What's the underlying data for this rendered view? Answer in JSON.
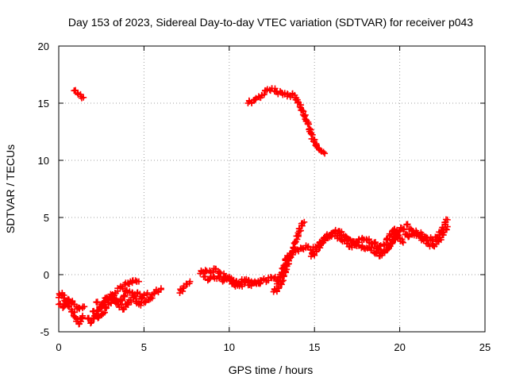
{
  "chart_data": {
    "type": "scatter",
    "title": "Day 153 of 2023, Sidereal Day-to-day VTEC variation (SDTVAR) for receiver p043",
    "xlabel": "GPS time / hours",
    "ylabel": "SDTVAR / TECUs",
    "xlim": [
      0,
      25
    ],
    "ylim": [
      -5,
      20
    ],
    "xticks": [
      "0",
      "5",
      "10",
      "15",
      "20",
      "25"
    ],
    "yticks": [
      "-5",
      "0",
      "5",
      "10",
      "15",
      "20"
    ],
    "grid": true,
    "marker": "plus",
    "color": "#ff0000",
    "series": [
      {
        "name": "SDTVAR",
        "segments": [
          [
            [
              0.0,
              -2.0
            ],
            [
              0.2,
              -1.6
            ],
            [
              0.4,
              -2.4
            ],
            [
              0.6,
              -2.8
            ],
            [
              0.8,
              -3.2
            ],
            [
              1.0,
              -3.8
            ],
            [
              1.2,
              -4.3
            ],
            [
              1.4,
              -3.6
            ]
          ],
          [
            [
              0.0,
              -2.6
            ],
            [
              0.3,
              -2.8
            ],
            [
              0.6,
              -2.2
            ],
            [
              0.9,
              -2.6
            ],
            [
              1.2,
              -3.0
            ],
            [
              1.5,
              -2.8
            ]
          ],
          [
            [
              0.9,
              16.1
            ],
            [
              1.1,
              15.9
            ],
            [
              1.3,
              15.6
            ],
            [
              1.45,
              15.5
            ]
          ],
          [
            [
              1.7,
              -3.8
            ],
            [
              1.9,
              -4.2
            ],
            [
              2.1,
              -3.6
            ],
            [
              2.4,
              -3.0
            ],
            [
              2.7,
              -2.4
            ],
            [
              3.0,
              -2.0
            ],
            [
              3.3,
              -1.6
            ],
            [
              3.6,
              -1.2
            ],
            [
              3.9,
              -0.9
            ],
            [
              4.2,
              -0.6
            ],
            [
              4.5,
              -0.5
            ],
            [
              4.7,
              -0.6
            ]
          ],
          [
            [
              2.0,
              -3.2
            ],
            [
              2.3,
              -3.8
            ],
            [
              2.6,
              -3.4
            ],
            [
              2.9,
              -2.6
            ],
            [
              3.2,
              -2.2
            ],
            [
              3.5,
              -2.6
            ],
            [
              3.8,
              -3.0
            ],
            [
              4.1,
              -2.4
            ],
            [
              4.4,
              -2.0
            ],
            [
              4.7,
              -2.6
            ],
            [
              5.0,
              -2.4
            ],
            [
              5.3,
              -2.2
            ],
            [
              5.6,
              -1.6
            ],
            [
              6.0,
              -1.2
            ]
          ],
          [
            [
              2.2,
              -2.4
            ],
            [
              2.5,
              -2.8
            ],
            [
              2.8,
              -2.0
            ],
            [
              3.1,
              -1.8
            ],
            [
              3.4,
              -2.4
            ],
            [
              3.7,
              -2.2
            ],
            [
              4.0,
              -1.4
            ],
            [
              4.3,
              -1.8
            ],
            [
              4.6,
              -1.6
            ],
            [
              4.9,
              -2.0
            ],
            [
              5.2,
              -1.6
            ]
          ],
          [
            [
              7.1,
              -1.6
            ],
            [
              7.3,
              -1.2
            ],
            [
              7.5,
              -0.8
            ],
            [
              7.7,
              -0.6
            ]
          ],
          [
            [
              8.3,
              0.1
            ],
            [
              8.6,
              0.4
            ],
            [
              8.9,
              0.2
            ],
            [
              9.2,
              0.5
            ],
            [
              9.5,
              0.1
            ],
            [
              9.8,
              -0.2
            ],
            [
              10.1,
              -0.4
            ],
            [
              10.4,
              -0.8
            ],
            [
              10.7,
              -0.6
            ],
            [
              11.0,
              -0.4
            ],
            [
              11.3,
              -0.6
            ],
            [
              11.6,
              -0.8
            ],
            [
              11.9,
              -0.5
            ],
            [
              12.2,
              -0.5
            ],
            [
              12.5,
              -0.3
            ],
            [
              12.7,
              -0.2
            ]
          ],
          [
            [
              8.5,
              -0.2
            ],
            [
              8.8,
              -0.4
            ],
            [
              9.1,
              -0.2
            ],
            [
              9.4,
              -0.3
            ],
            [
              9.7,
              -0.5
            ],
            [
              10.0,
              -0.2
            ],
            [
              10.3,
              -0.9
            ],
            [
              10.6,
              -1.0
            ],
            [
              10.9,
              -0.7
            ],
            [
              11.2,
              -0.9
            ],
            [
              11.5,
              -0.6
            ],
            [
              11.8,
              -0.8
            ]
          ],
          [
            [
              11.1,
              15.0
            ],
            [
              11.5,
              15.3
            ],
            [
              11.9,
              15.7
            ],
            [
              12.2,
              16.1
            ],
            [
              12.5,
              16.3
            ],
            [
              12.8,
              16.0
            ],
            [
              13.1,
              15.9
            ],
            [
              13.4,
              15.6
            ],
            [
              13.7,
              15.8
            ],
            [
              14.0,
              15.3
            ],
            [
              14.2,
              14.6
            ],
            [
              14.4,
              13.9
            ],
            [
              14.6,
              13.2
            ],
            [
              14.8,
              12.4
            ],
            [
              15.0,
              11.6
            ],
            [
              15.2,
              11.1
            ],
            [
              15.4,
              10.8
            ],
            [
              15.6,
              10.6
            ]
          ],
          [
            [
              12.6,
              -1.5
            ],
            [
              12.9,
              -1.2
            ],
            [
              13.1,
              -0.6
            ],
            [
              13.3,
              0.3
            ],
            [
              13.5,
              1.2
            ],
            [
              13.7,
              2.0
            ],
            [
              13.9,
              2.9
            ],
            [
              14.1,
              3.8
            ],
            [
              14.3,
              4.5
            ],
            [
              14.4,
              4.6
            ]
          ],
          [
            [
              12.8,
              -0.8
            ],
            [
              13.0,
              -0.2
            ],
            [
              13.2,
              0.8
            ],
            [
              13.4,
              1.5
            ],
            [
              13.7,
              2.0
            ],
            [
              14.0,
              2.2
            ],
            [
              14.3,
              2.3
            ],
            [
              14.6,
              2.4
            ],
            [
              14.9,
              2.2
            ],
            [
              15.2,
              2.6
            ],
            [
              15.5,
              3.0
            ],
            [
              15.8,
              3.2
            ],
            [
              16.1,
              3.7
            ],
            [
              16.4,
              3.8
            ],
            [
              16.7,
              3.5
            ],
            [
              17.0,
              3.1
            ],
            [
              17.3,
              2.9
            ],
            [
              17.6,
              2.6
            ],
            [
              17.9,
              2.3
            ],
            [
              18.2,
              2.4
            ],
            [
              18.5,
              2.0
            ],
            [
              18.8,
              1.7
            ],
            [
              19.1,
              2.0
            ],
            [
              19.4,
              2.5
            ],
            [
              19.7,
              3.3
            ],
            [
              19.9,
              3.7
            ],
            [
              20.1,
              4.1
            ]
          ],
          [
            [
              14.8,
              1.6
            ],
            [
              15.1,
              2.0
            ],
            [
              15.4,
              2.7
            ],
            [
              15.7,
              3.4
            ],
            [
              16.0,
              3.6
            ],
            [
              16.3,
              3.4
            ],
            [
              16.6,
              3.1
            ],
            [
              16.9,
              2.7
            ],
            [
              17.2,
              2.4
            ],
            [
              17.5,
              2.9
            ],
            [
              17.8,
              3.2
            ],
            [
              18.1,
              3.0
            ],
            [
              18.4,
              2.7
            ],
            [
              18.7,
              2.3
            ],
            [
              19.0,
              1.9
            ],
            [
              19.3,
              2.2
            ],
            [
              19.6,
              2.9
            ],
            [
              19.9,
              3.4
            ]
          ],
          [
            [
              20.2,
              4.0
            ],
            [
              20.5,
              3.3
            ],
            [
              20.8,
              3.6
            ],
            [
              21.1,
              3.4
            ],
            [
              21.4,
              3.0
            ],
            [
              21.7,
              2.7
            ],
            [
              22.0,
              2.5
            ],
            [
              22.3,
              3.0
            ],
            [
              22.6,
              3.7
            ],
            [
              22.8,
              4.2
            ]
          ],
          [
            [
              20.4,
              4.4
            ],
            [
              20.7,
              3.9
            ],
            [
              21.0,
              3.7
            ],
            [
              21.3,
              3.5
            ],
            [
              21.6,
              3.2
            ],
            [
              21.9,
              3.1
            ],
            [
              22.2,
              3.3
            ],
            [
              22.5,
              3.9
            ],
            [
              22.7,
              4.6
            ],
            [
              22.8,
              4.8
            ]
          ],
          [
            [
              18.5,
              2.8
            ],
            [
              18.8,
              2.5
            ],
            [
              19.1,
              2.6
            ],
            [
              19.4,
              3.4
            ],
            [
              19.7,
              4.0
            ],
            [
              20.0,
              3.2
            ],
            [
              20.2,
              2.8
            ]
          ]
        ]
      }
    ]
  }
}
